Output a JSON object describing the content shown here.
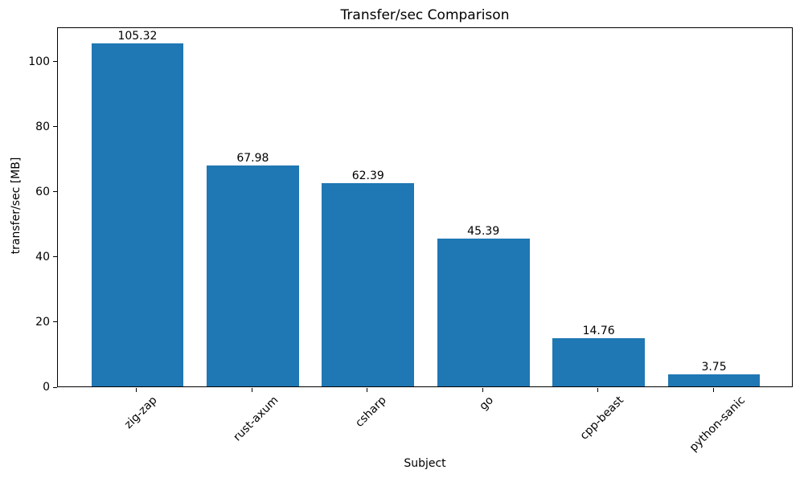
{
  "chart_data": {
    "type": "bar",
    "title": "Transfer/sec Comparison",
    "xlabel": "Subject",
    "ylabel": "transfer/sec [MB]",
    "categories": [
      "zig-zap",
      "rust-axum",
      "csharp",
      "go",
      "cpp-beast",
      "python-sanic"
    ],
    "values": [
      105.32,
      67.98,
      62.39,
      45.39,
      14.76,
      3.75
    ],
    "value_labels": [
      "105.32",
      "67.98",
      "62.39",
      "45.39",
      "14.76",
      "3.75"
    ],
    "yticks": [
      0,
      20,
      40,
      60,
      80,
      100
    ],
    "ylim": [
      0,
      110.6
    ],
    "xtick_label_rotation_deg": 45,
    "grid": false,
    "legend": "none",
    "colors": {
      "bar": "#1f77b4",
      "text": "#000000",
      "spine": "#000000",
      "background": "#ffffff"
    }
  }
}
